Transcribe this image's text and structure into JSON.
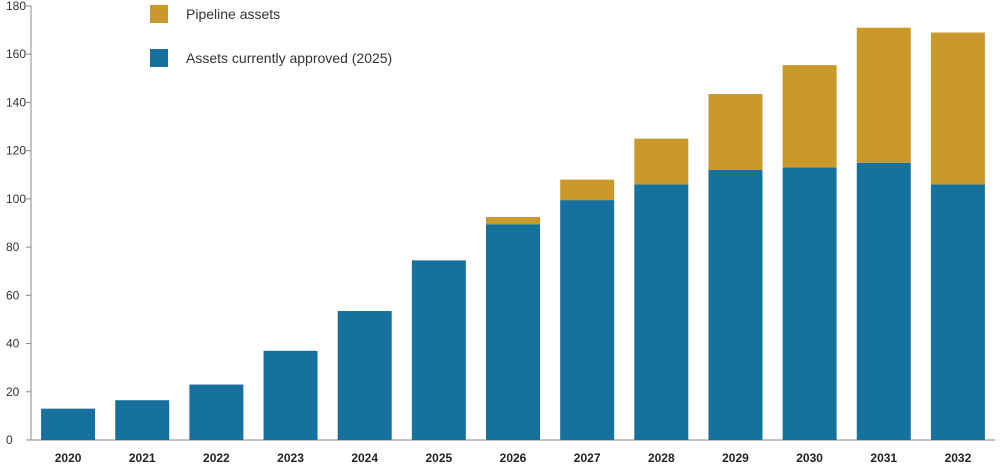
{
  "chart_data": {
    "type": "bar",
    "stacked": true,
    "categories": [
      "2020",
      "2021",
      "2022",
      "2023",
      "2024",
      "2025",
      "2026",
      "2027",
      "2028",
      "2029",
      "2030",
      "2031",
      "2032"
    ],
    "series": [
      {
        "name": "Assets currently approved (2025)",
        "color": "#16719e",
        "values": [
          13,
          16.5,
          23,
          37,
          53.5,
          74.5,
          89.5,
          99.5,
          106,
          112,
          113,
          115,
          106
        ]
      },
      {
        "name": "Pipeline assets",
        "color": "#c99a2b",
        "values": [
          0,
          0,
          0,
          0,
          0,
          0,
          3,
          8.5,
          19,
          31.5,
          42.5,
          56,
          63
        ]
      }
    ],
    "yticks": [
      "0",
      "20",
      "40",
      "60",
      "80",
      "100",
      "120",
      "140",
      "160",
      "180"
    ],
    "ylim": [
      0,
      180
    ],
    "legend": {
      "placement": "top-left",
      "items": [
        {
          "label": "Pipeline assets",
          "color": "#c99a2b"
        },
        {
          "label": "Assets currently approved (2025)",
          "color": "#16719e"
        }
      ]
    },
    "grid": false
  }
}
